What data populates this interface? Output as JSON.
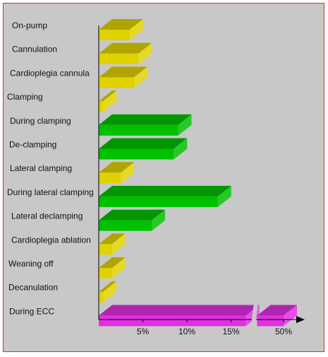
{
  "chart_data": {
    "type": "bar",
    "orientation": "horizontal",
    "style": "3d",
    "categories": [
      "On-pump",
      "Cannulation",
      "Cardioplegia   cannula",
      "Clamping",
      "During clamping",
      "De-clamping",
      "Lateral clamping",
      "During lateral clamping",
      "Lateral declamping",
      "Cardioplegia    ablation",
      "Weaning off",
      "Decanulation",
      "During ECC"
    ],
    "values": [
      3.5,
      4.5,
      4,
      0.5,
      9,
      8.5,
      2.5,
      13.5,
      6,
      1.5,
      1.5,
      0.5,
      50
    ],
    "bar_colors": [
      "#e0d200",
      "#e0d200",
      "#e0d200",
      "#e0d200",
      "#00c000",
      "#00c000",
      "#e0d200",
      "#00c000",
      "#00c000",
      "#e0d200",
      "#e0d200",
      "#e0d200",
      "#e030e0"
    ],
    "x_ticks": [
      "5%",
      "10%",
      "15%",
      "50%"
    ],
    "x_tick_values": [
      5,
      10,
      15,
      50
    ],
    "axis_break": [
      17,
      47
    ],
    "xlim": [
      0,
      52
    ],
    "title": "",
    "xlabel": "",
    "ylabel": "",
    "grid": false,
    "legend": "none"
  }
}
